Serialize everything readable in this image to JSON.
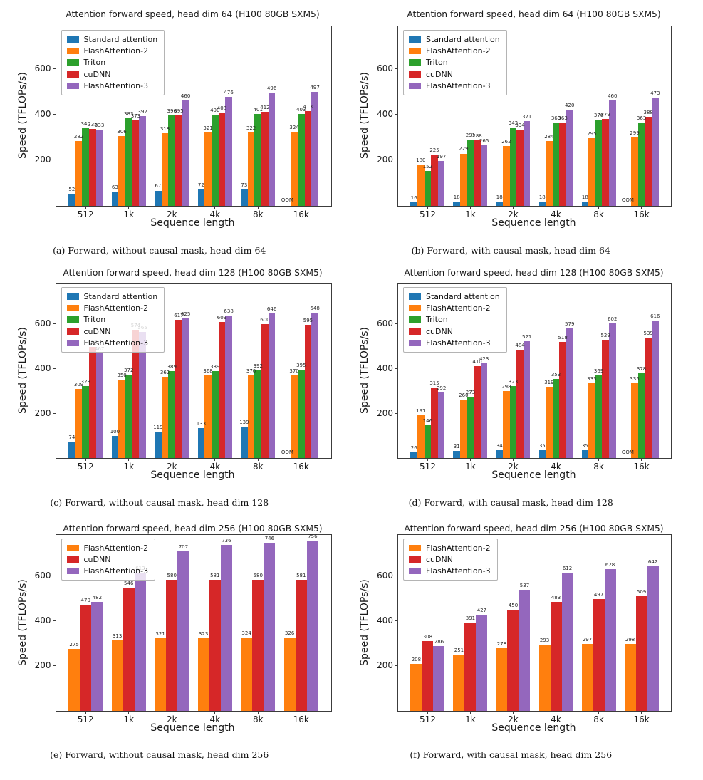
{
  "shared": {
    "ylabel": "Speed (TFLOPs/s)",
    "xlabel": "Sequence length",
    "categories": [
      "512",
      "1k",
      "2k",
      "4k",
      "8k",
      "16k"
    ],
    "yticks": [
      200,
      400,
      600
    ],
    "oom_label": "OOM",
    "legend_position": "upper left",
    "grid": false,
    "colors": {
      "standard_attention": "#1f77b4",
      "flashattention2": "#ff7f0e",
      "triton": "#2ca02c",
      "cudnn": "#d62728",
      "flashattention3": "#9467bd"
    }
  },
  "chart_data": [
    {
      "type": "bar",
      "title": "Attention forward speed, head dim 64 (H100 80GB SXM5)",
      "caption": "(a) Forward, without causal mask, head dim 64",
      "ylim": [
        0,
        785
      ],
      "series": [
        {
          "name": "Standard attention",
          "color": "#1f77b4",
          "values": [
            52,
            63,
            67,
            72,
            73,
            "OOM"
          ]
        },
        {
          "name": "FlashAttention-2",
          "color": "#ff7f0e",
          "values": [
            282,
            306,
            318,
            321,
            322,
            324
          ]
        },
        {
          "name": "Triton",
          "color": "#2ca02c",
          "values": [
            340,
            383,
            396,
            400,
            401,
            403
          ]
        },
        {
          "name": "cuDNN",
          "color": "#d62728",
          "values": [
            335,
            373,
            395,
            408,
            412,
            413
          ]
        },
        {
          "name": "FlashAttention-3",
          "color": "#9467bd",
          "values": [
            333,
            392,
            460,
            476,
            496,
            497
          ]
        }
      ]
    },
    {
      "type": "bar",
      "title": "Attention forward speed, head dim 64 (H100 80GB SXM5)",
      "caption": "(b) Forward, with causal mask, head dim 64",
      "ylim": [
        0,
        785
      ],
      "series": [
        {
          "name": "Standard attention",
          "color": "#1f77b4",
          "values": [
            16,
            18,
            18,
            18,
            18,
            "OOM"
          ]
        },
        {
          "name": "FlashAttention-2",
          "color": "#ff7f0e",
          "values": [
            180,
            229,
            262,
            284,
            295,
            299
          ]
        },
        {
          "name": "Triton",
          "color": "#2ca02c",
          "values": [
            152,
            291,
            342,
            363,
            376,
            363
          ]
        },
        {
          "name": "cuDNN",
          "color": "#d62728",
          "values": [
            225,
            288,
            334,
            363,
            379,
            388
          ]
        },
        {
          "name": "FlashAttention-3",
          "color": "#9467bd",
          "values": [
            197,
            265,
            371,
            420,
            460,
            473
          ]
        }
      ]
    },
    {
      "type": "bar",
      "title": "Attention forward speed, head dim 128 (H100 80GB SXM5)",
      "caption": "(c) Forward, without causal mask, head dim 128",
      "ylim": [
        0,
        780
      ],
      "series": [
        {
          "name": "Standard attention",
          "color": "#1f77b4",
          "values": [
            74,
            100,
            119,
            133,
            139,
            "OOM"
          ]
        },
        {
          "name": "FlashAttention-2",
          "color": "#ff7f0e",
          "values": [
            309,
            350,
            362,
            368,
            370,
            370
          ]
        },
        {
          "name": "Triton",
          "color": "#2ca02c",
          "values": [
            323,
            372,
            389,
            389,
            392,
            395
          ]
        },
        {
          "name": "cuDNN",
          "color": "#d62728",
          "values": [
            497,
            574,
            617,
            609,
            600,
            595
          ]
        },
        {
          "name": "FlashAttention-3",
          "color": "#9467bd",
          "values": [
            467,
            565,
            625,
            638,
            646,
            648
          ]
        }
      ]
    },
    {
      "type": "bar",
      "title": "Attention forward speed, head dim 128 (H100 80GB SXM5)",
      "caption": "(d) Forward, with causal mask, head dim 128",
      "ylim": [
        0,
        780
      ],
      "series": [
        {
          "name": "Standard attention",
          "color": "#1f77b4",
          "values": [
            26,
            31,
            34,
            35,
            35,
            "OOM"
          ]
        },
        {
          "name": "FlashAttention-2",
          "color": "#ff7f0e",
          "values": [
            191,
            260,
            298,
            319,
            333,
            335
          ]
        },
        {
          "name": "Triton",
          "color": "#2ca02c",
          "values": [
            146,
            273,
            323,
            353,
            369,
            378
          ]
        },
        {
          "name": "cuDNN",
          "color": "#d62728",
          "values": [
            315,
            410,
            484,
            518,
            529,
            539
          ]
        },
        {
          "name": "FlashAttention-3",
          "color": "#9467bd",
          "values": [
            292,
            423,
            521,
            579,
            602,
            616
          ]
        }
      ]
    },
    {
      "type": "bar",
      "title": "Attention forward speed, head dim 256 (H100 80GB SXM5)",
      "caption": "(e) Forward, without causal mask, head dim 256",
      "ylim": [
        0,
        780
      ],
      "series": [
        {
          "name": "FlashAttention-2",
          "color": "#ff7f0e",
          "values": [
            275,
            313,
            321,
            323,
            324,
            326
          ]
        },
        {
          "name": "cuDNN",
          "color": "#d62728",
          "values": [
            470,
            546,
            580,
            581,
            580,
            581
          ]
        },
        {
          "name": "FlashAttention-3",
          "color": "#9467bd",
          "values": [
            482,
            613,
            707,
            736,
            746,
            756
          ]
        }
      ]
    },
    {
      "type": "bar",
      "title": "Attention forward speed, head dim 256 (H100 80GB SXM5)",
      "caption": "(f) Forward, with causal mask, head dim 256",
      "ylim": [
        0,
        780
      ],
      "series": [
        {
          "name": "FlashAttention-2",
          "color": "#ff7f0e",
          "values": [
            208,
            251,
            278,
            293,
            297,
            298
          ]
        },
        {
          "name": "cuDNN",
          "color": "#d62728",
          "values": [
            308,
            391,
            450,
            483,
            497,
            509
          ]
        },
        {
          "name": "FlashAttention-3",
          "color": "#9467bd",
          "values": [
            286,
            427,
            537,
            612,
            628,
            642
          ]
        }
      ]
    }
  ]
}
